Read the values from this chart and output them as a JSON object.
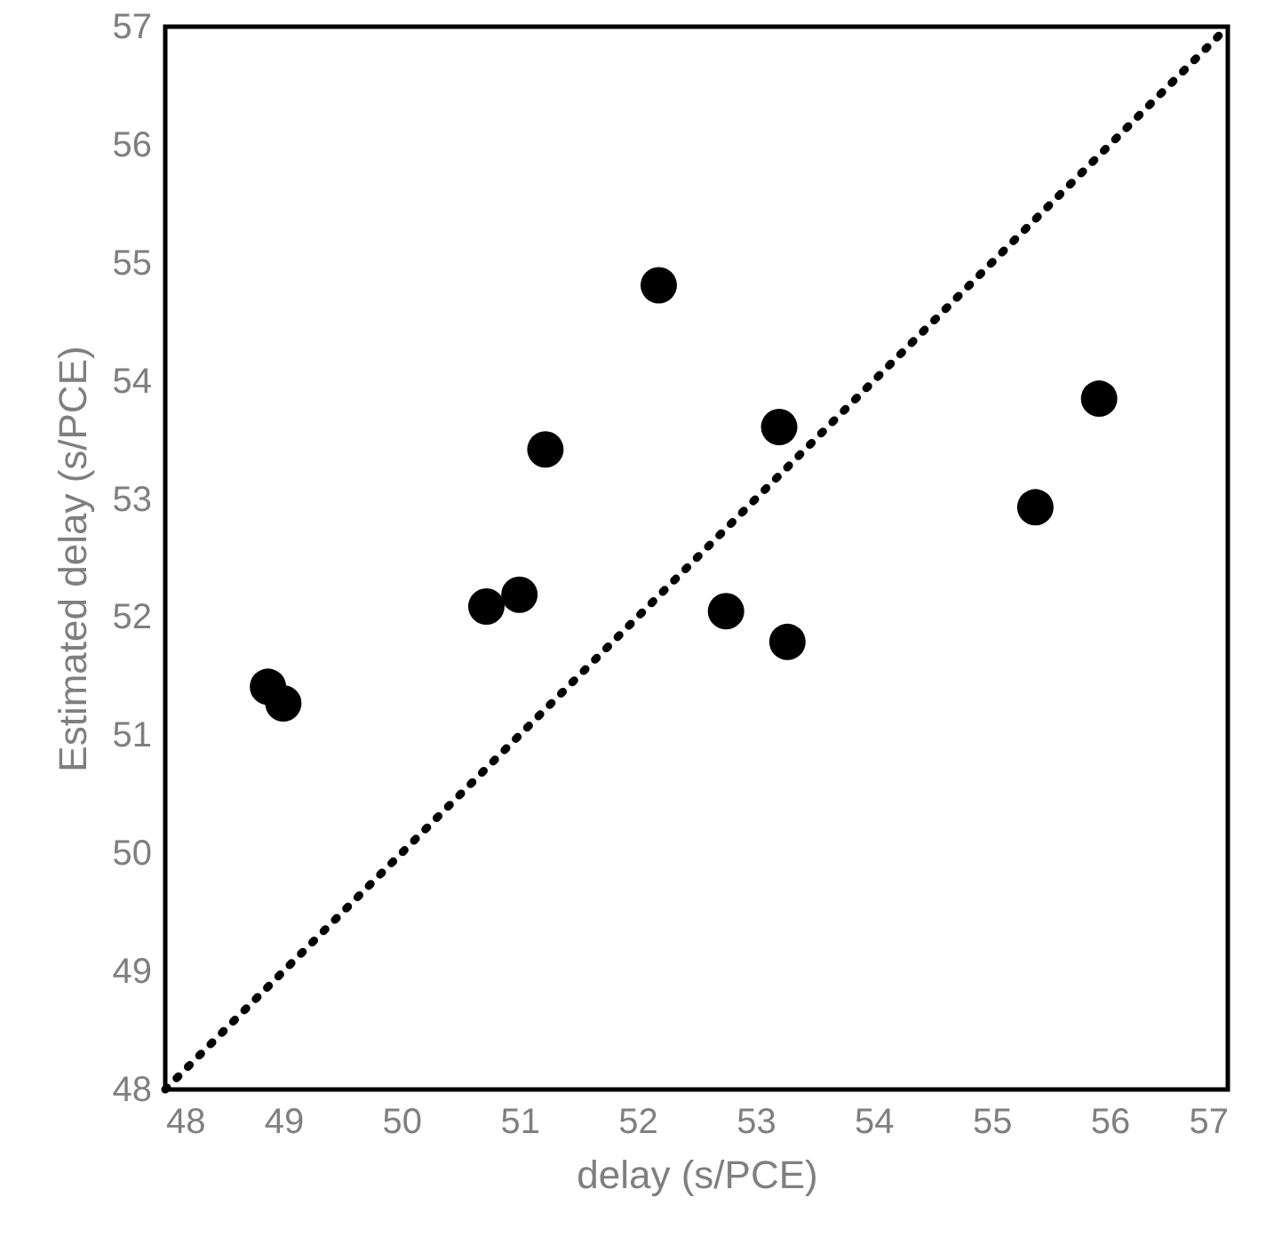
{
  "chart_data": {
    "type": "scatter",
    "xlabel": "delay (s/PCE)",
    "ylabel": "Estimated delay (s/PCE)",
    "xlim": [
      48,
      57
    ],
    "ylim": [
      48,
      57
    ],
    "xticks": [
      48,
      49,
      50,
      51,
      52,
      53,
      54,
      55,
      56,
      57
    ],
    "yticks": [
      48,
      49,
      50,
      51,
      52,
      53,
      54,
      55,
      56,
      57
    ],
    "grid": false,
    "series": [
      {
        "color": "#000000",
        "marker": "circle",
        "x": [
          48.87,
          49.0,
          50.72,
          51.0,
          51.22,
          52.18,
          52.75,
          53.2,
          53.27,
          55.37,
          55.91
        ],
        "values": [
          51.41,
          51.27,
          52.09,
          52.19,
          53.42,
          54.81,
          52.05,
          53.61,
          51.79,
          52.93,
          53.85
        ]
      },
      {
        "type": "line",
        "color": "#000000",
        "marker": "none",
        "line_style": "dotted",
        "x": [
          48,
          57
        ],
        "values": [
          48,
          57
        ]
      }
    ]
  }
}
